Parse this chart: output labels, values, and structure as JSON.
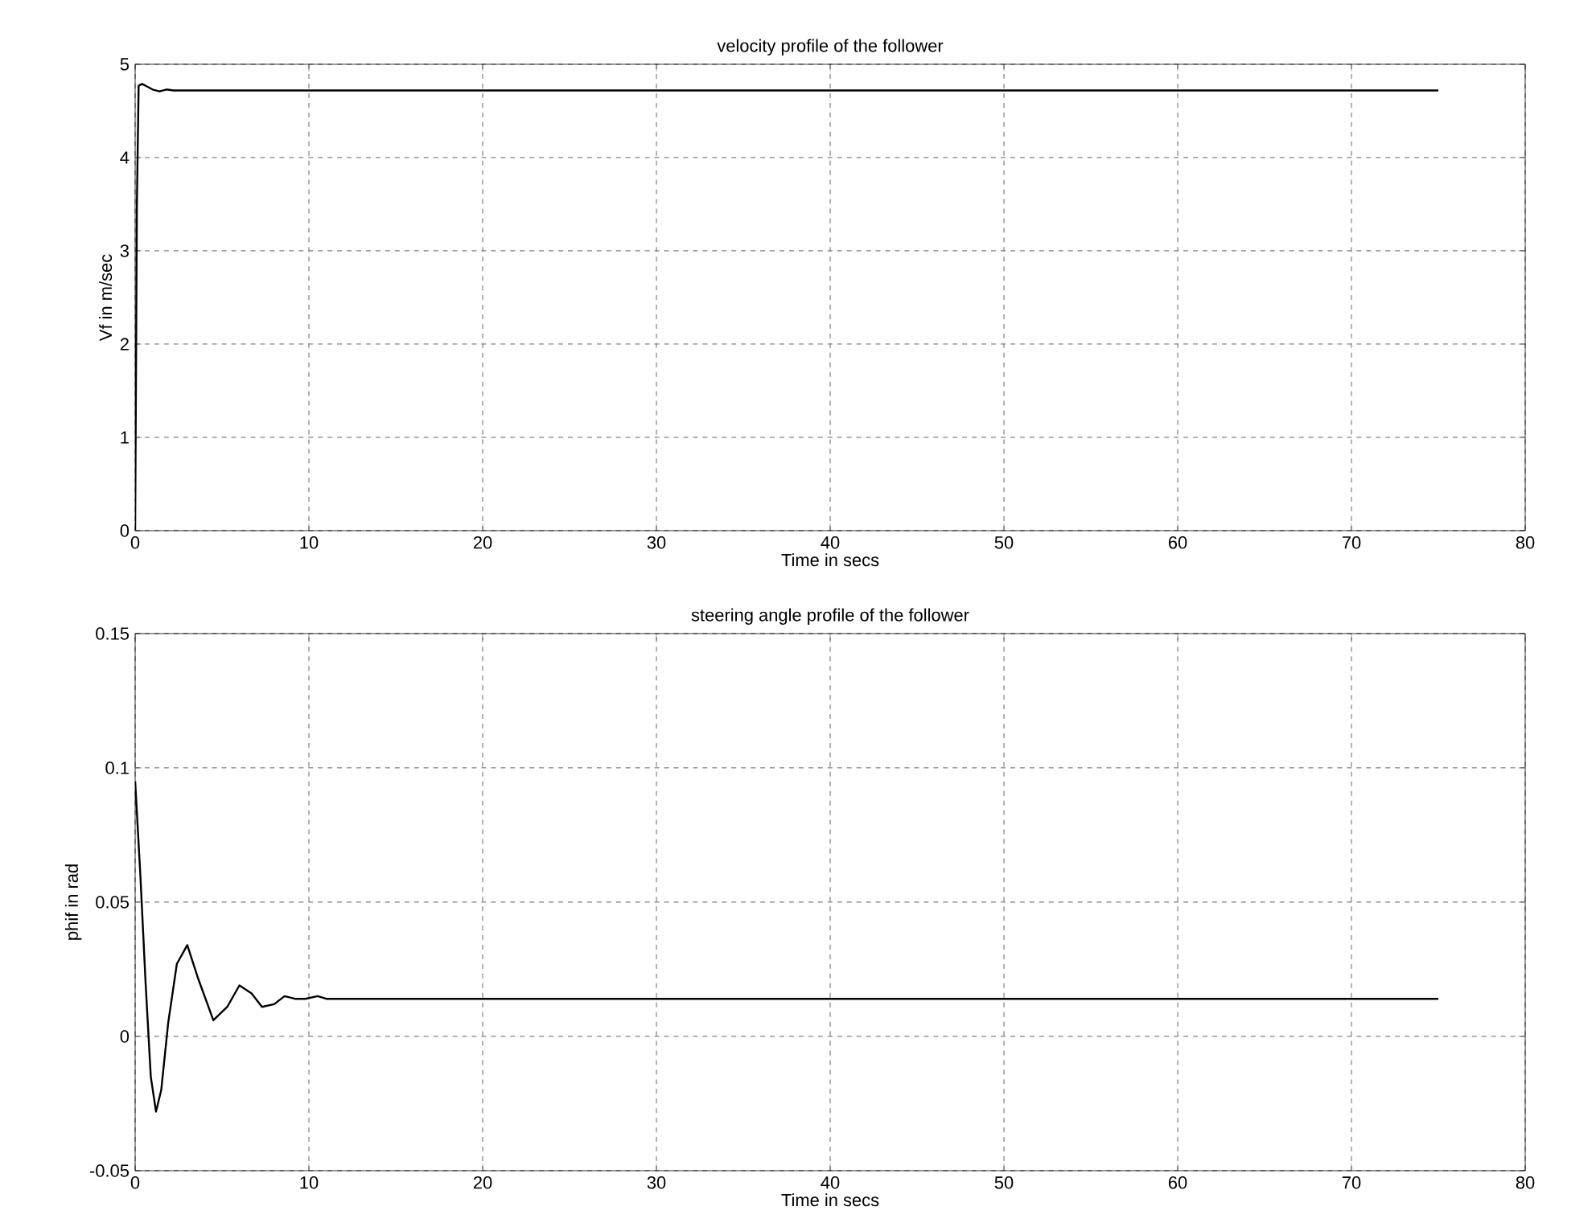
{
  "chart_data": [
    {
      "type": "line",
      "title": "velocity profile of the follower",
      "xlabel": "Time in secs",
      "ylabel": "Vf in m/sec",
      "grid": true,
      "line_style": "solid",
      "xlim": [
        0,
        80
      ],
      "ylim": [
        0,
        5
      ],
      "xticks": [
        0,
        10,
        20,
        30,
        40,
        50,
        60,
        70,
        80
      ],
      "yticks": [
        0,
        1,
        2,
        3,
        4,
        5
      ],
      "x": [
        0,
        0.1,
        0.2,
        0.4,
        0.7,
        1.0,
        1.4,
        1.8,
        2.2,
        2.6,
        3,
        75
      ],
      "series": [
        {
          "color": "#000000",
          "values": [
            0,
            3.5,
            4.77,
            4.79,
            4.76,
            4.73,
            4.71,
            4.73,
            4.72,
            4.72,
            4.72,
            4.72
          ]
        }
      ]
    },
    {
      "type": "line",
      "title": "steering angle profile of the follower",
      "xlabel": "Time in secs",
      "ylabel": "phif in rad",
      "grid": true,
      "line_style": "solid",
      "xlim": [
        0,
        80
      ],
      "ylim": [
        -0.05,
        0.15
      ],
      "xticks": [
        0,
        10,
        20,
        30,
        40,
        50,
        60,
        70,
        80
      ],
      "yticks": [
        -0.05,
        0,
        0.05,
        0.1,
        0.15
      ],
      "x": [
        0,
        0.3,
        0.6,
        0.9,
        1.2,
        1.5,
        1.9,
        2.4,
        3.0,
        3.6,
        4.5,
        5.3,
        6.0,
        6.7,
        7.3,
        8.0,
        8.6,
        9.2,
        9.8,
        10.5,
        11,
        75
      ],
      "series": [
        {
          "color": "#000000",
          "values": [
            0.095,
            0.06,
            0.02,
            -0.015,
            -0.028,
            -0.02,
            0.005,
            0.027,
            0.034,
            0.022,
            0.006,
            0.011,
            0.019,
            0.016,
            0.011,
            0.012,
            0.015,
            0.014,
            0.014,
            0.015,
            0.014,
            0.014
          ]
        }
      ]
    }
  ]
}
